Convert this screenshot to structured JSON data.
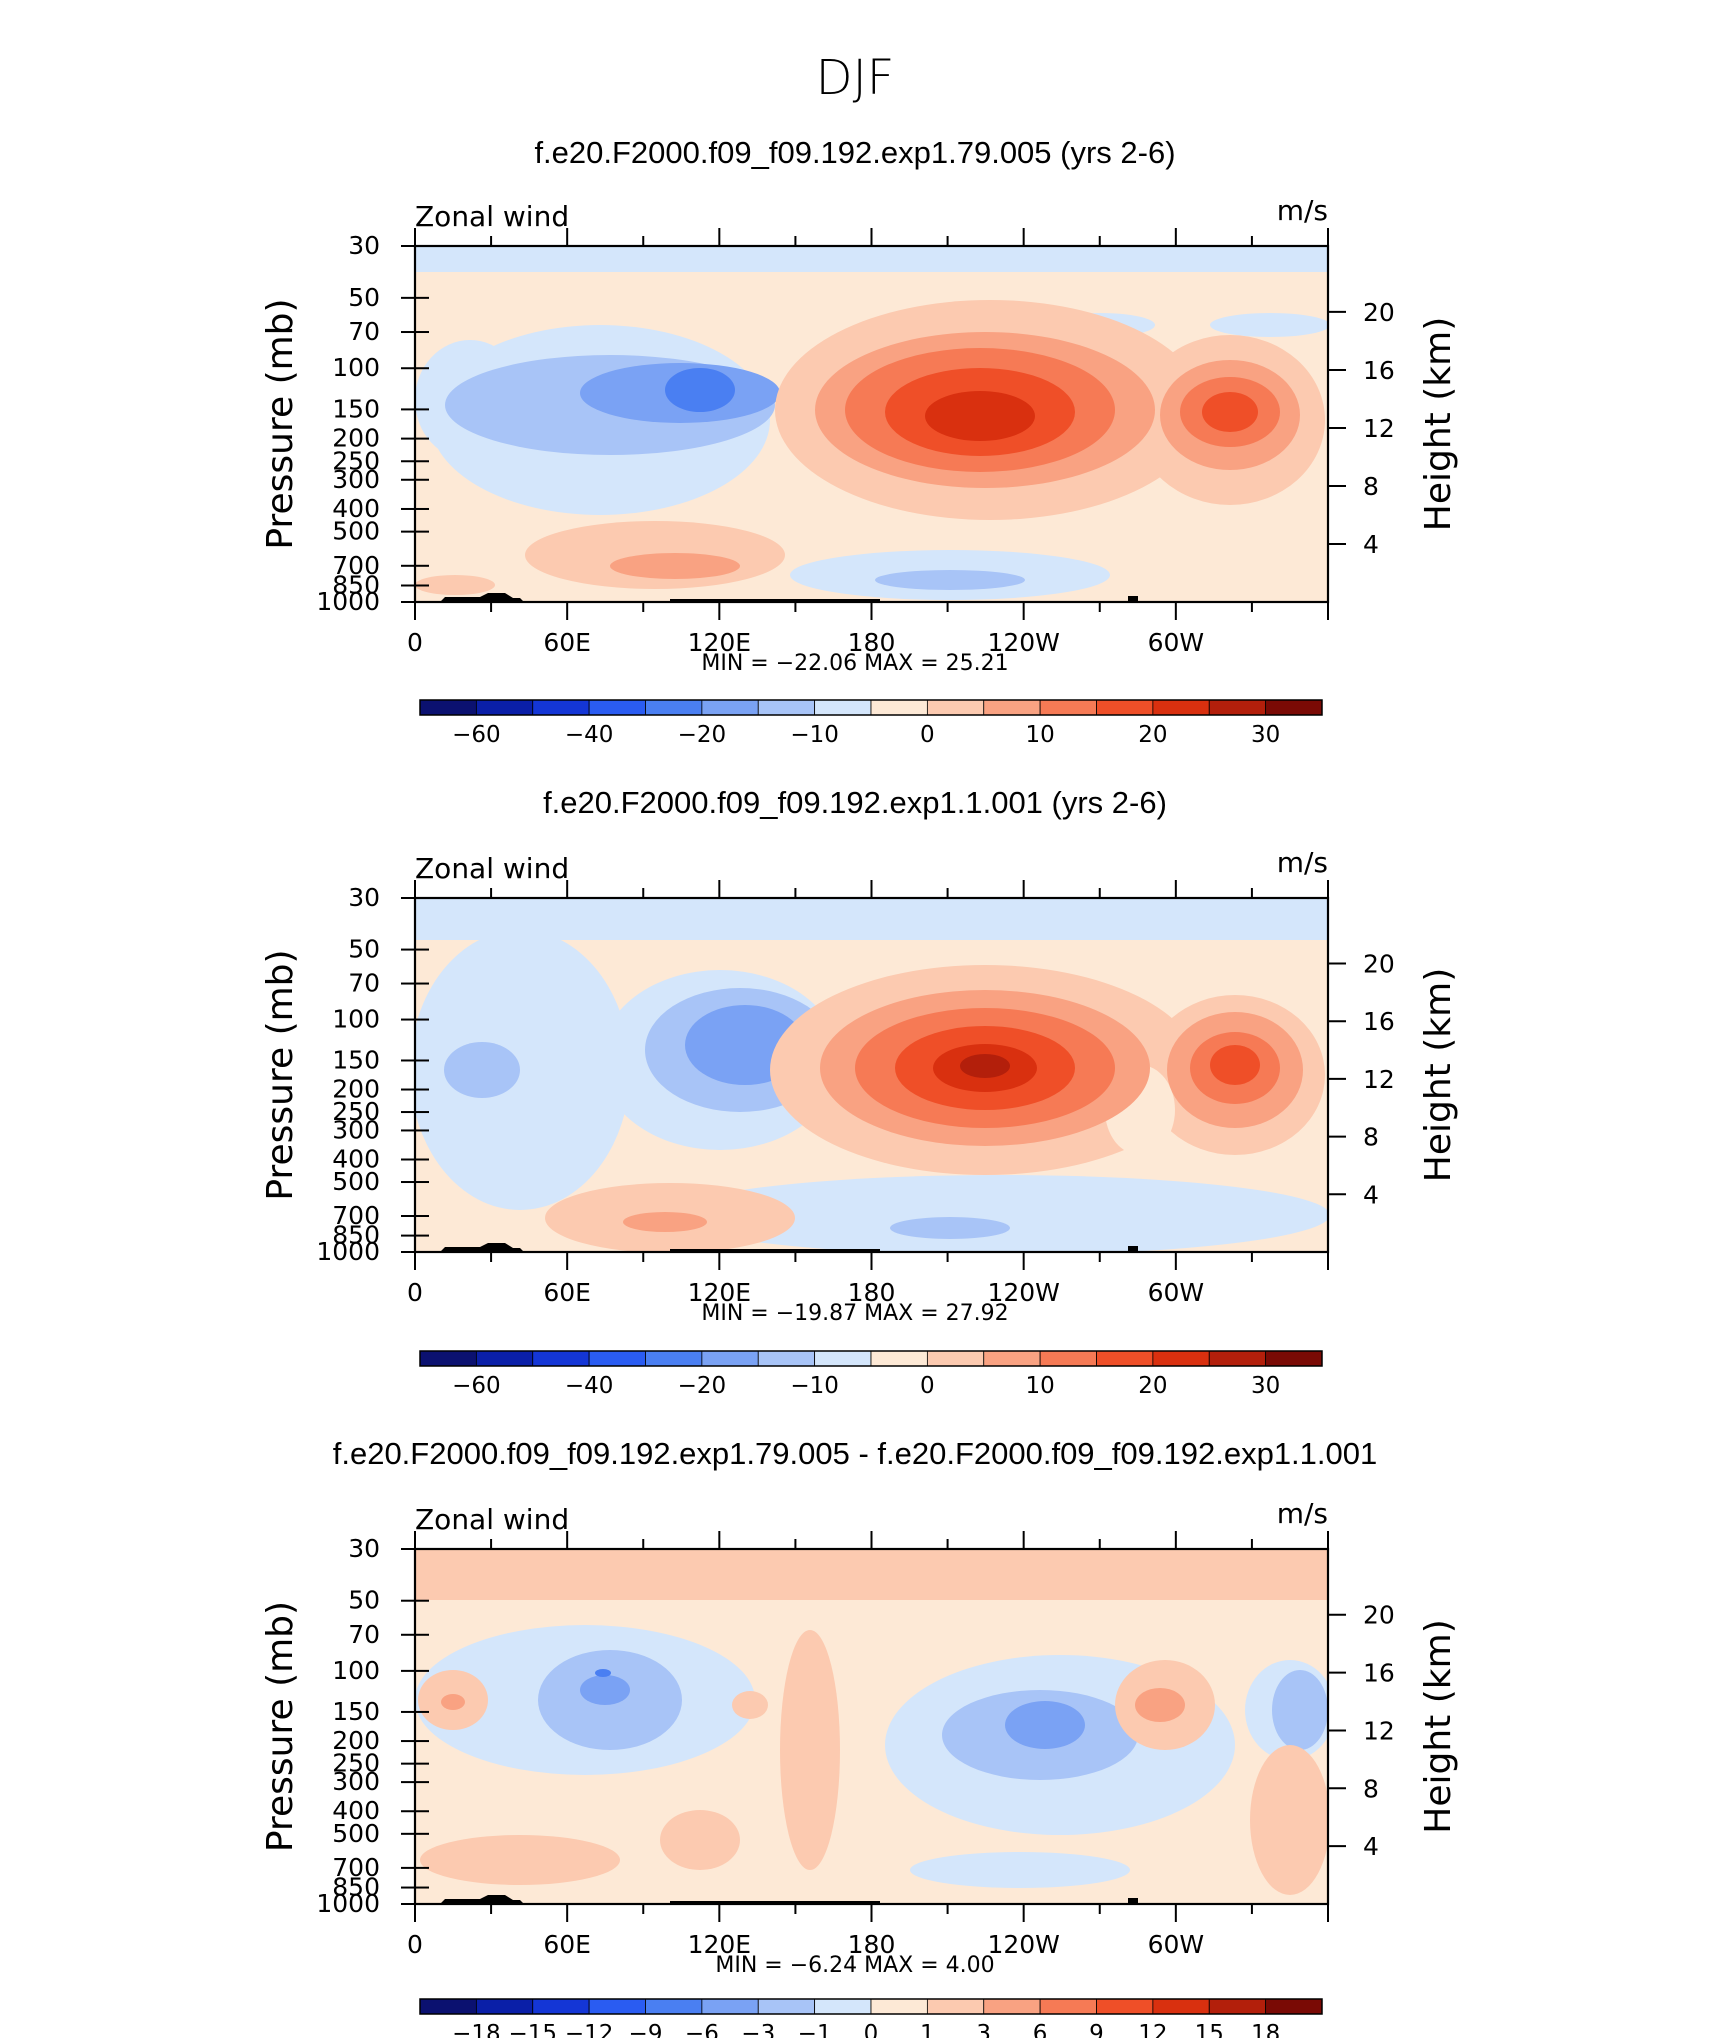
{
  "figure_title": "DJF",
  "colors": {
    "palette_main": [
      "#0b1170",
      "#0a1fa8",
      "#1436d6",
      "#2a5cf2",
      "#4a7ff2",
      "#7aa2f4",
      "#a8c4f7",
      "#d4e6fb",
      "#fde9d6",
      "#fccab0",
      "#f9a282",
      "#f67a55",
      "#ef4f28",
      "#d9300f",
      "#b31f0b",
      "#7a0a05"
    ],
    "topography": "#000000"
  },
  "chart_data": [
    {
      "type": "heatmap",
      "id": "panel1",
      "title": "f.e20.F2000.f09_f09.192.exp1.79.005 (yrs 2-6)",
      "variable": "Zonal wind",
      "units": "m/s",
      "xlabel": "",
      "ylabel": "Pressure (mb)",
      "y2label": "Height (km)",
      "x_ticks": [
        "0",
        "60E",
        "120E",
        "180",
        "120W",
        "60W"
      ],
      "y_ticks": [
        "30",
        "50",
        "70",
        "100",
        "150",
        "200",
        "250",
        "300",
        "400",
        "500",
        "700",
        "850",
        "1000"
      ],
      "y2_ticks": [
        "20",
        "16",
        "12",
        "8",
        "4"
      ],
      "min_label": "MIN =",
      "min_value": "−22.06",
      "max_label": "MAX =",
      "max_value": "25.21",
      "colorbar_labels": [
        "−60",
        "−40",
        "−20",
        "−10",
        "0",
        "10",
        "20",
        "30"
      ],
      "colorbar_levels": [
        -70,
        -60,
        -50,
        -40,
        -30,
        -20,
        -15,
        -10,
        -5,
        0,
        5,
        10,
        15,
        20,
        25,
        30
      ],
      "features": [
        {
          "name": "jet-center-pacific",
          "lon": 222,
          "p": 150,
          "peak": 25.21
        },
        {
          "name": "jet-center-atlantic",
          "lon": 315,
          "p": 150,
          "peak": 18
        },
        {
          "name": "easterly-center-asia",
          "lon": 115,
          "p": 130,
          "peak": -22.06
        }
      ]
    },
    {
      "type": "heatmap",
      "id": "panel2",
      "title": "f.e20.F2000.f09_f09.192.exp1.1.001 (yrs 2-6)",
      "variable": "Zonal wind",
      "units": "m/s",
      "xlabel": "",
      "ylabel": "Pressure (mb)",
      "y2label": "Height (km)",
      "x_ticks": [
        "0",
        "60E",
        "120E",
        "180",
        "120W",
        "60W"
      ],
      "y_ticks": [
        "30",
        "50",
        "70",
        "100",
        "150",
        "200",
        "250",
        "300",
        "400",
        "500",
        "700",
        "850",
        "1000"
      ],
      "y2_ticks": [
        "20",
        "16",
        "12",
        "8",
        "4"
      ],
      "min_label": "MIN =",
      "min_value": "−19.87",
      "max_label": "MAX =",
      "max_value": "27.92",
      "colorbar_labels": [
        "−60",
        "−40",
        "−20",
        "−10",
        "0",
        "10",
        "20",
        "30"
      ],
      "colorbar_levels": [
        -70,
        -60,
        -50,
        -40,
        -30,
        -20,
        -15,
        -10,
        -5,
        0,
        5,
        10,
        15,
        20,
        25,
        30
      ],
      "features": [
        {
          "name": "jet-center-pacific",
          "lon": 217,
          "p": 150,
          "peak": 27.92
        },
        {
          "name": "jet-center-atlantic",
          "lon": 317,
          "p": 150,
          "peak": 20
        },
        {
          "name": "easterly-center-asia",
          "lon": 115,
          "p": 130,
          "peak": -19.87
        }
      ]
    },
    {
      "type": "heatmap",
      "id": "panel3",
      "title": "f.e20.F2000.f09_f09.192.exp1.79.005 - f.e20.F2000.f09_f09.192.exp1.1.001",
      "variable": "Zonal wind",
      "units": "m/s",
      "xlabel": "",
      "ylabel": "Pressure (mb)",
      "y2label": "Height (km)",
      "x_ticks": [
        "0",
        "60E",
        "120E",
        "180",
        "120W",
        "60W"
      ],
      "y_ticks": [
        "30",
        "50",
        "70",
        "100",
        "150",
        "200",
        "250",
        "300",
        "400",
        "500",
        "700",
        "850",
        "1000"
      ],
      "y2_ticks": [
        "20",
        "16",
        "12",
        "8",
        "4"
      ],
      "min_label": "MIN =",
      "min_value": "−6.24",
      "max_label": "MAX =",
      "max_value": "4.00",
      "colorbar_labels": [
        "−18",
        "−15",
        "−12",
        "−9",
        "−6",
        "−3",
        "−1",
        "0",
        "1",
        "3",
        "6",
        "9",
        "12",
        "15",
        "18"
      ],
      "colorbar_levels": [
        -21,
        -18,
        -15,
        -12,
        -9,
        -6,
        -3,
        -1,
        0,
        1,
        3,
        6,
        9,
        12,
        15,
        18
      ],
      "features": [
        {
          "name": "negative-center-asia",
          "lon": 75,
          "p": 110,
          "peak": -6.24
        },
        {
          "name": "negative-center-pacific",
          "lon": 240,
          "p": 160,
          "peak": -4
        },
        {
          "name": "positive-center-atlantic",
          "lon": 295,
          "p": 150,
          "peak": 4.0
        }
      ]
    }
  ]
}
